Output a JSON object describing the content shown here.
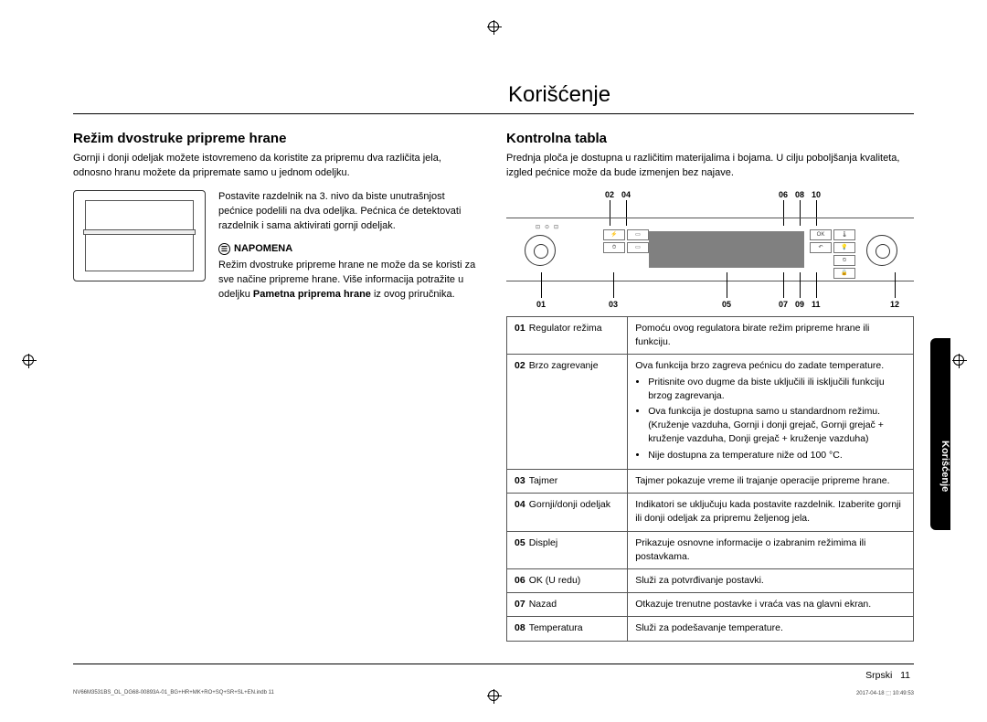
{
  "main_title": "Korišćenje",
  "left": {
    "section_title": "Režim dvostruke pripreme hrane",
    "intro": "Gornji i donji odeljak možete istovremeno da koristite za pripremu dva različita jela, odnosno hranu možete da pripremate samo u jednom odeljku.",
    "para1": "Postavite razdelnik na 3. nivo da biste unutrašnjost pećnice podelili na dva odeljka. Pećnica će detektovati razdelnik i sama aktivirati gornji odeljak.",
    "note_label": "NAPOMENA",
    "note_body1": "Režim dvostruke pripreme hrane ne može da se koristi za sve načine pripreme hrane. Više informacija potražite u odeljku ",
    "note_bold": "Pametna priprema hrane",
    "note_body2": " iz ovog priručnika."
  },
  "right": {
    "section_title": "Kontrolna tabla",
    "intro": "Prednja ploča je dostupna u različitim materijalima i bojama. U cilju poboljšanja kvaliteta, izgled pećnice može da bude izmenjen bez najave.",
    "callouts_top": [
      "02",
      "04",
      "06",
      "08",
      "10"
    ],
    "callouts_bottom": [
      "01",
      "03",
      "05",
      "07",
      "09",
      "11",
      "12"
    ]
  },
  "table": [
    {
      "num": "01",
      "label": "Regulator režima",
      "desc": "Pomoću ovog regulatora birate režim pripreme hrane ili funkciju."
    },
    {
      "num": "02",
      "label": "Brzo zagrevanje",
      "desc": "Ova funkcija brzo zagreva pećnicu do zadate temperature.",
      "bullets": [
        "Pritisnite ovo dugme da biste uključili ili isključili funkciju brzog zagrevanja.",
        "Ova funkcija je dostupna samo u standardnom režimu. (Kruženje vazduha, Gornji i donji grejač, Gornji grejač + kruženje vazduha, Donji grejač + kruženje vazduha)",
        "Nije dostupna za temperature niže od 100 °C."
      ]
    },
    {
      "num": "03",
      "label": "Tajmer",
      "desc": "Tajmer pokazuje vreme ili trajanje operacije pripreme hrane."
    },
    {
      "num": "04",
      "label": "Gornji/donji odeljak",
      "desc": "Indikatori se uključuju kada postavite razdelnik. Izaberite gornji ili donji odeljak za pripremu željenog jela."
    },
    {
      "num": "05",
      "label": "Displej",
      "desc": "Prikazuje osnovne informacije o izabranim režimima ili postavkama."
    },
    {
      "num": "06",
      "label": "OK (U redu)",
      "desc": "Služi za potvrđivanje postavki."
    },
    {
      "num": "07",
      "label": "Nazad",
      "desc": "Otkazuje trenutne postavke i vraća vas na glavni ekran."
    },
    {
      "num": "08",
      "label": "Temperatura",
      "desc": "Služi za podešavanje temperature."
    }
  ],
  "side_tab": "Korišćenje",
  "footer": {
    "lang": "Srpski",
    "page": "11"
  },
  "tiny": {
    "left": "NV66M3531BS_OL_DG68-00893A-01_BG+HR+MK+RO+SQ+SR+SL+EN.indb   11",
    "right": "2017-04-18   ⬚ 10:49:53"
  }
}
